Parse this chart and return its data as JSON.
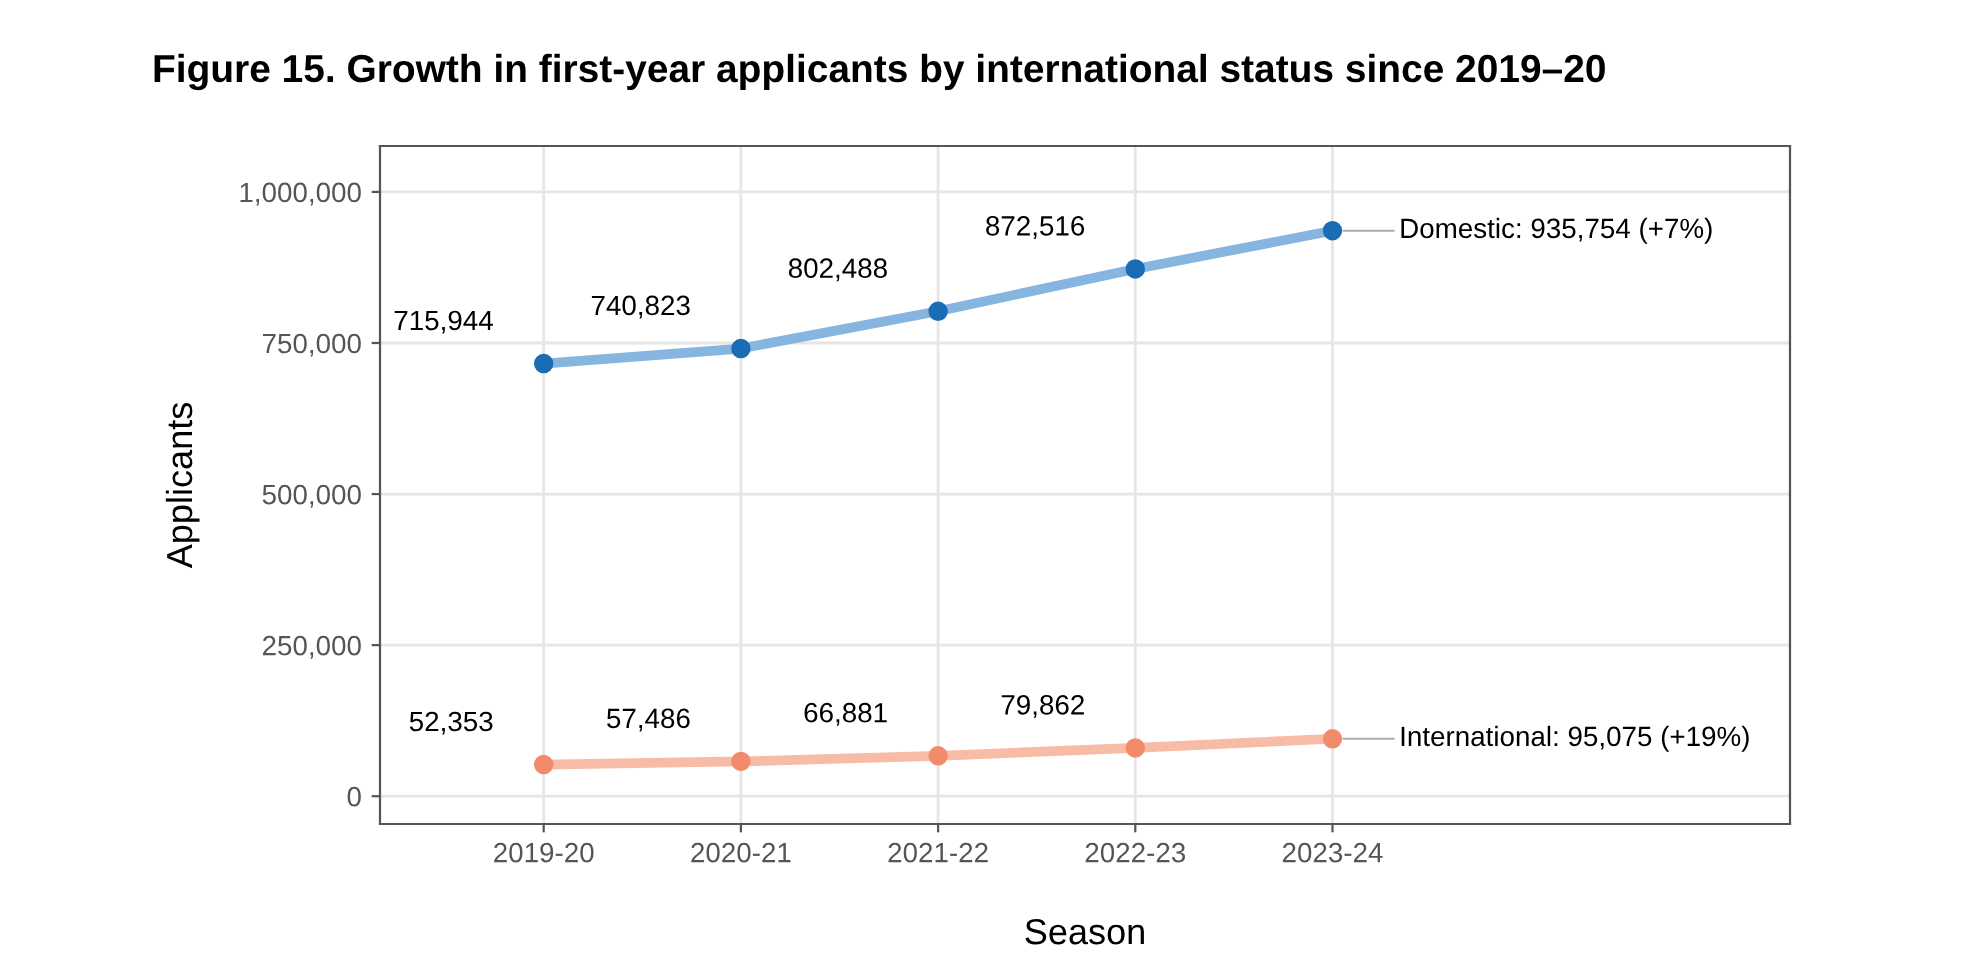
{
  "chart_data": {
    "type": "line",
    "title": "Figure 15. Growth in first-year applicants by international status since 2019–20",
    "xlabel": "Season",
    "ylabel": "Applicants",
    "categories": [
      "2019-20",
      "2020-21",
      "2021-22",
      "2022-23",
      "2023-24"
    ],
    "series": [
      {
        "color": "#86b5df",
        "colors": [
          "#1a6db5",
          "#1a6db5",
          "#1a6db5",
          "#1a6db5",
          "#1a6db5"
        ],
        "values": [
          715944,
          740823,
          802488,
          872516,
          935754
        ],
        "value_labels": [
          "715,944",
          "740,823",
          "802,488",
          "872,516",
          null
        ]
      },
      {
        "color": "#f8bca6",
        "colors": [
          "#f28b6c",
          "#f28b6c",
          "#f28b6c",
          "#f28b6c",
          "#f28b6c"
        ],
        "values": [
          52353,
          57486,
          66881,
          79862,
          95075
        ],
        "value_labels": [
          "52,353",
          "57,486",
          "66,881",
          "79,862",
          null
        ]
      }
    ],
    "annotations": [
      {
        "text": "Domestic: 935,754 (+7%)",
        "x": "2023-24",
        "y": 935754
      },
      {
        "text": "International: 95,075 (+19%)",
        "x": "2023-24",
        "y": 95075
      }
    ],
    "ylim": [
      -46000,
      1076000
    ],
    "yticks": [
      {
        "value": 0,
        "label": "0"
      },
      {
        "value": 250000,
        "label": "250,000"
      },
      {
        "value": 500000,
        "label": "500,000"
      },
      {
        "value": 750000,
        "label": "750,000"
      },
      {
        "value": 1000000,
        "label": "1,000,000"
      }
    ],
    "grid": true,
    "marker": "circle",
    "line_style": "solid",
    "legend": false
  }
}
